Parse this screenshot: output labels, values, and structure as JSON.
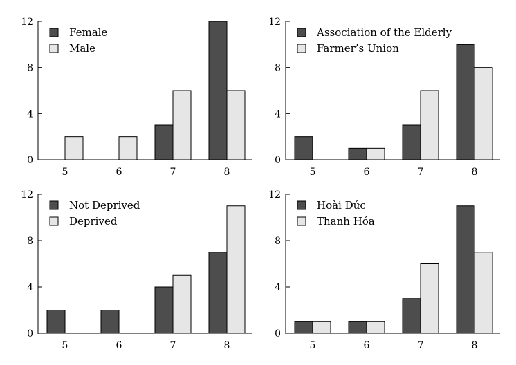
{
  "chart_data": [
    {
      "type": "bar",
      "categories": [
        "5",
        "6",
        "7",
        "8"
      ],
      "series": [
        {
          "name": "Female",
          "values": [
            0,
            0,
            3,
            12
          ]
        },
        {
          "name": "Male",
          "values": [
            2,
            2,
            6,
            6
          ]
        }
      ],
      "ylim": [
        0,
        12
      ],
      "yticks": [
        "0",
        "4",
        "8",
        "12"
      ],
      "legend": "top-left",
      "grid": false
    },
    {
      "type": "bar",
      "categories": [
        "5",
        "6",
        "7",
        "8"
      ],
      "series": [
        {
          "name": "Association of the Elderly",
          "values": [
            2,
            1,
            3,
            10
          ]
        },
        {
          "name": "Farmer’s Union",
          "values": [
            0,
            1,
            6,
            8
          ]
        }
      ],
      "ylim": [
        0,
        12
      ],
      "yticks": [
        "0",
        "4",
        "8",
        "12"
      ],
      "legend": "top-left",
      "grid": false
    },
    {
      "type": "bar",
      "categories": [
        "5",
        "6",
        "7",
        "8"
      ],
      "series": [
        {
          "name": "Not Deprived",
          "values": [
            2,
            2,
            4,
            7
          ]
        },
        {
          "name": "Deprived",
          "values": [
            0,
            0,
            5,
            11
          ]
        }
      ],
      "ylim": [
        0,
        12
      ],
      "yticks": [
        "0",
        "4",
        "8",
        "12"
      ],
      "legend": "top-left",
      "grid": false
    },
    {
      "type": "bar",
      "categories": [
        "5",
        "6",
        "7",
        "8"
      ],
      "series": [
        {
          "name": "Hoài Đức",
          "values": [
            1,
            1,
            3,
            11
          ]
        },
        {
          "name": "Thanh Hóa",
          "values": [
            1,
            1,
            6,
            7
          ]
        }
      ],
      "ylim": [
        0,
        12
      ],
      "yticks": [
        "0",
        "4",
        "8",
        "12"
      ],
      "legend": "top-left",
      "grid": false
    }
  ],
  "colors": {
    "series_1": "#4d4d4d",
    "series_2": "#e6e6e6",
    "stroke": "#000000"
  }
}
